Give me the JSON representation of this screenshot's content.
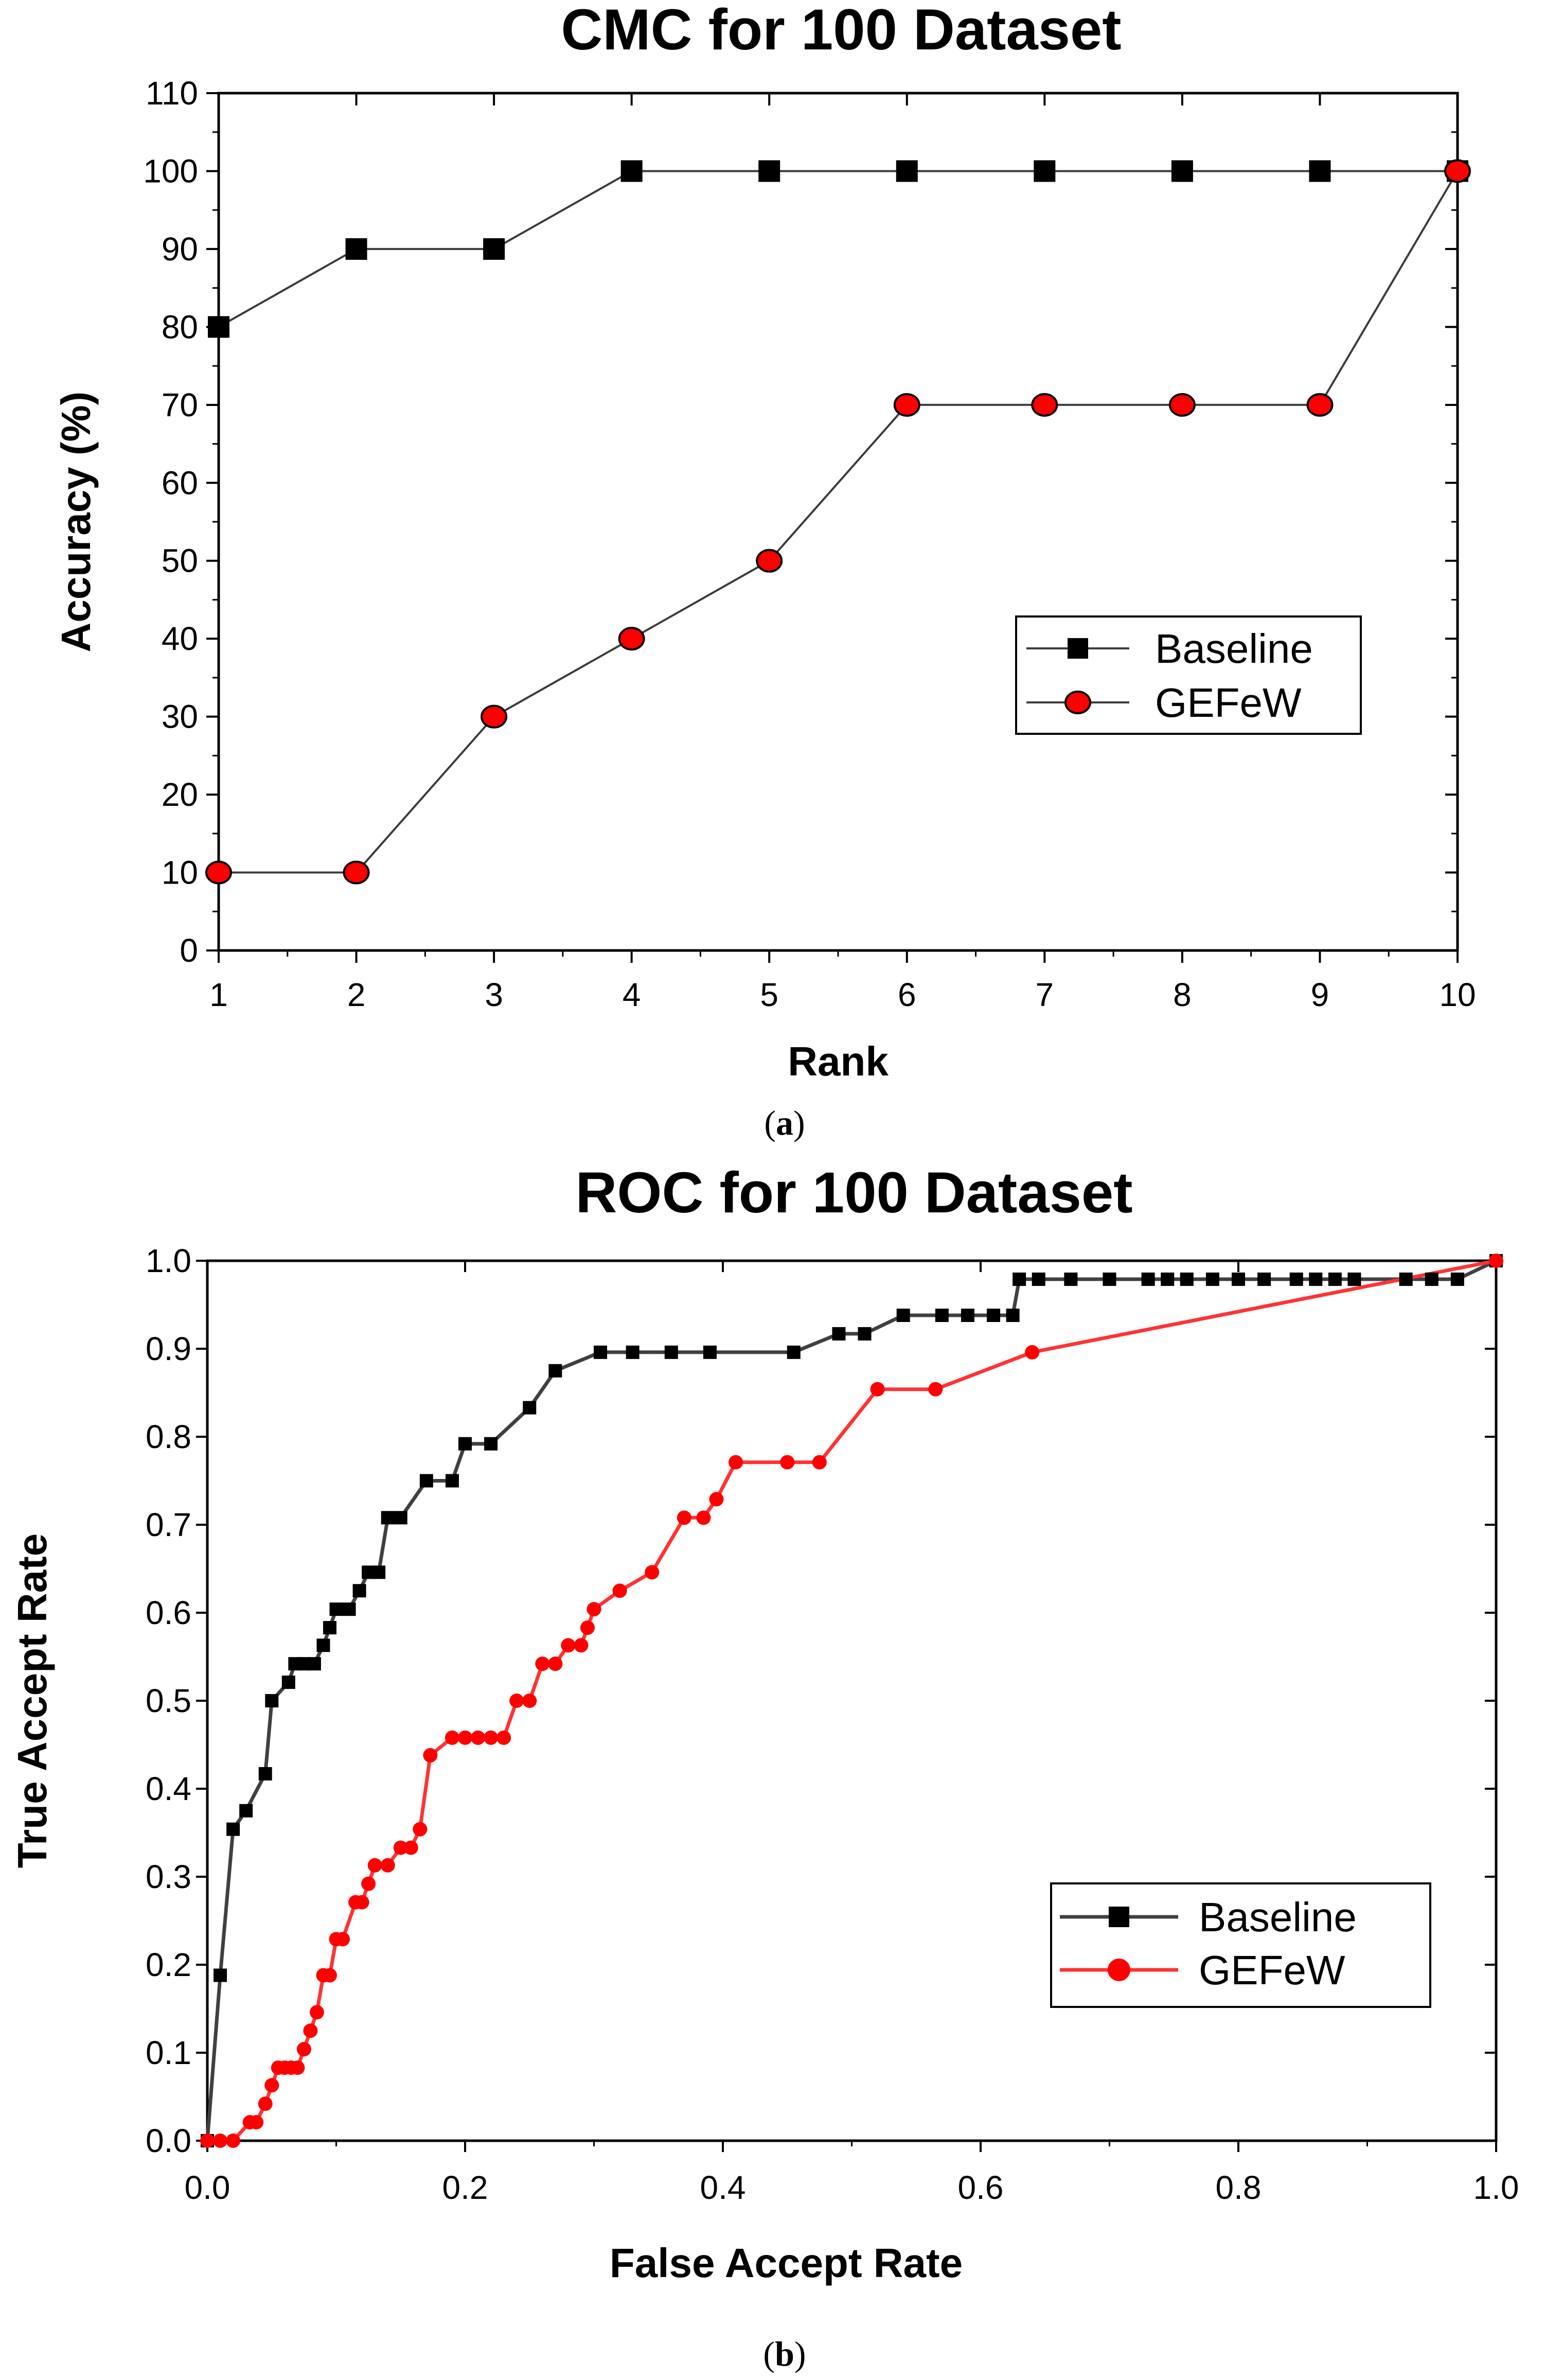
{
  "chart_data": [
    {
      "type": "line",
      "title": "CMC for 100 Dataset",
      "xlabel": "Rank",
      "ylabel": "Accuracy (%)",
      "xlim": [
        1,
        10
      ],
      "ylim": [
        0,
        110
      ],
      "x_ticks": [
        "1",
        "2",
        "3",
        "4",
        "5",
        "6",
        "7",
        "8",
        "9",
        "10"
      ],
      "y_ticks": [
        "0",
        "10",
        "20",
        "30",
        "40",
        "50",
        "60",
        "70",
        "80",
        "90",
        "100",
        "110"
      ],
      "grid": false,
      "legend_position": "right",
      "caption_letter": "a",
      "series": [
        {
          "name": "Baseline",
          "marker": "square",
          "line_color": "#3c3c3c",
          "marker_fill": "#000000",
          "x": [
            1,
            2,
            3,
            4,
            5,
            6,
            7,
            8,
            9,
            10
          ],
          "y": [
            80,
            90,
            90,
            100,
            100,
            100,
            100,
            100,
            100,
            100
          ]
        },
        {
          "name": "GEFeW",
          "marker": "circle",
          "line_color": "#3c3c3c",
          "marker_fill": "#ff0000",
          "x": [
            1,
            2,
            3,
            4,
            5,
            6,
            7,
            8,
            9,
            10
          ],
          "y": [
            10,
            10,
            30,
            40,
            50,
            70,
            70,
            70,
            70,
            100
          ]
        }
      ]
    },
    {
      "type": "line",
      "title": "ROC for 100 Dataset",
      "xlabel": "False Accept Rate",
      "ylabel": "True Accept Rate",
      "xlim": [
        0.0,
        1.0
      ],
      "ylim": [
        0.0,
        1.0
      ],
      "x_ticks": [
        "0.0",
        "0.2",
        "0.4",
        "0.6",
        "0.8",
        "1.0"
      ],
      "y_ticks": [
        "0.0",
        "0.1",
        "0.2",
        "0.3",
        "0.4",
        "0.5",
        "0.6",
        "0.7",
        "0.8",
        "0.9",
        "1.0"
      ],
      "grid": false,
      "legend_position": "lower right",
      "caption_letter": "b",
      "series": [
        {
          "name": "Baseline",
          "marker": "square",
          "line_color": "#404040",
          "marker_fill": "#000000",
          "x": [
            0.0,
            0.01,
            0.02,
            0.03,
            0.045,
            0.05,
            0.063,
            0.068,
            0.075,
            0.083,
            0.09,
            0.095,
            0.1,
            0.11,
            0.118,
            0.125,
            0.133,
            0.14,
            0.15,
            0.17,
            0.19,
            0.2,
            0.22,
            0.25,
            0.27,
            0.305,
            0.33,
            0.36,
            0.39,
            0.455,
            0.49,
            0.51,
            0.54,
            0.57,
            0.59,
            0.61,
            0.625,
            0.63,
            0.645,
            0.67,
            0.7,
            0.73,
            0.745,
            0.76,
            0.78,
            0.8,
            0.82,
            0.845,
            0.86,
            0.875,
            0.89,
            0.93,
            0.95,
            0.97,
            1.0
          ],
          "y": [
            0.0,
            0.188,
            0.354,
            0.375,
            0.417,
            0.5,
            0.521,
            0.542,
            0.542,
            0.542,
            0.563,
            0.583,
            0.604,
            0.604,
            0.625,
            0.646,
            0.646,
            0.708,
            0.708,
            0.75,
            0.75,
            0.792,
            0.792,
            0.833,
            0.875,
            0.896,
            0.896,
            0.896,
            0.896,
            0.896,
            0.917,
            0.917,
            0.938,
            0.938,
            0.938,
            0.938,
            0.938,
            0.979,
            0.979,
            0.979,
            0.979,
            0.979,
            0.979,
            0.979,
            0.979,
            0.979,
            0.979,
            0.979,
            0.979,
            0.979,
            0.979,
            0.979,
            0.979,
            0.979,
            1.0
          ]
        },
        {
          "name": "GEFeW",
          "marker": "circle",
          "line_color": "#ff3333",
          "marker_fill": "#ff0000",
          "x": [
            0.0,
            0.01,
            0.02,
            0.033,
            0.038,
            0.045,
            0.05,
            0.055,
            0.06,
            0.065,
            0.07,
            0.075,
            0.08,
            0.085,
            0.09,
            0.095,
            0.1,
            0.105,
            0.115,
            0.12,
            0.125,
            0.13,
            0.14,
            0.15,
            0.158,
            0.165,
            0.173,
            0.19,
            0.2,
            0.21,
            0.22,
            0.23,
            0.24,
            0.25,
            0.26,
            0.27,
            0.28,
            0.29,
            0.295,
            0.3,
            0.32,
            0.345,
            0.37,
            0.385,
            0.395,
            0.41,
            0.45,
            0.475,
            0.52,
            0.565,
            0.64,
            1.0
          ],
          "y": [
            0.0,
            0.0,
            0.0,
            0.021,
            0.021,
            0.042,
            0.063,
            0.083,
            0.083,
            0.083,
            0.083,
            0.104,
            0.125,
            0.146,
            0.188,
            0.188,
            0.229,
            0.229,
            0.271,
            0.271,
            0.292,
            0.313,
            0.313,
            0.333,
            0.333,
            0.354,
            0.438,
            0.458,
            0.458,
            0.458,
            0.458,
            0.458,
            0.5,
            0.5,
            0.542,
            0.542,
            0.563,
            0.563,
            0.583,
            0.604,
            0.625,
            0.646,
            0.708,
            0.708,
            0.729,
            0.771,
            0.771,
            0.771,
            0.854,
            0.854,
            0.896,
            1.0
          ]
        }
      ]
    }
  ]
}
